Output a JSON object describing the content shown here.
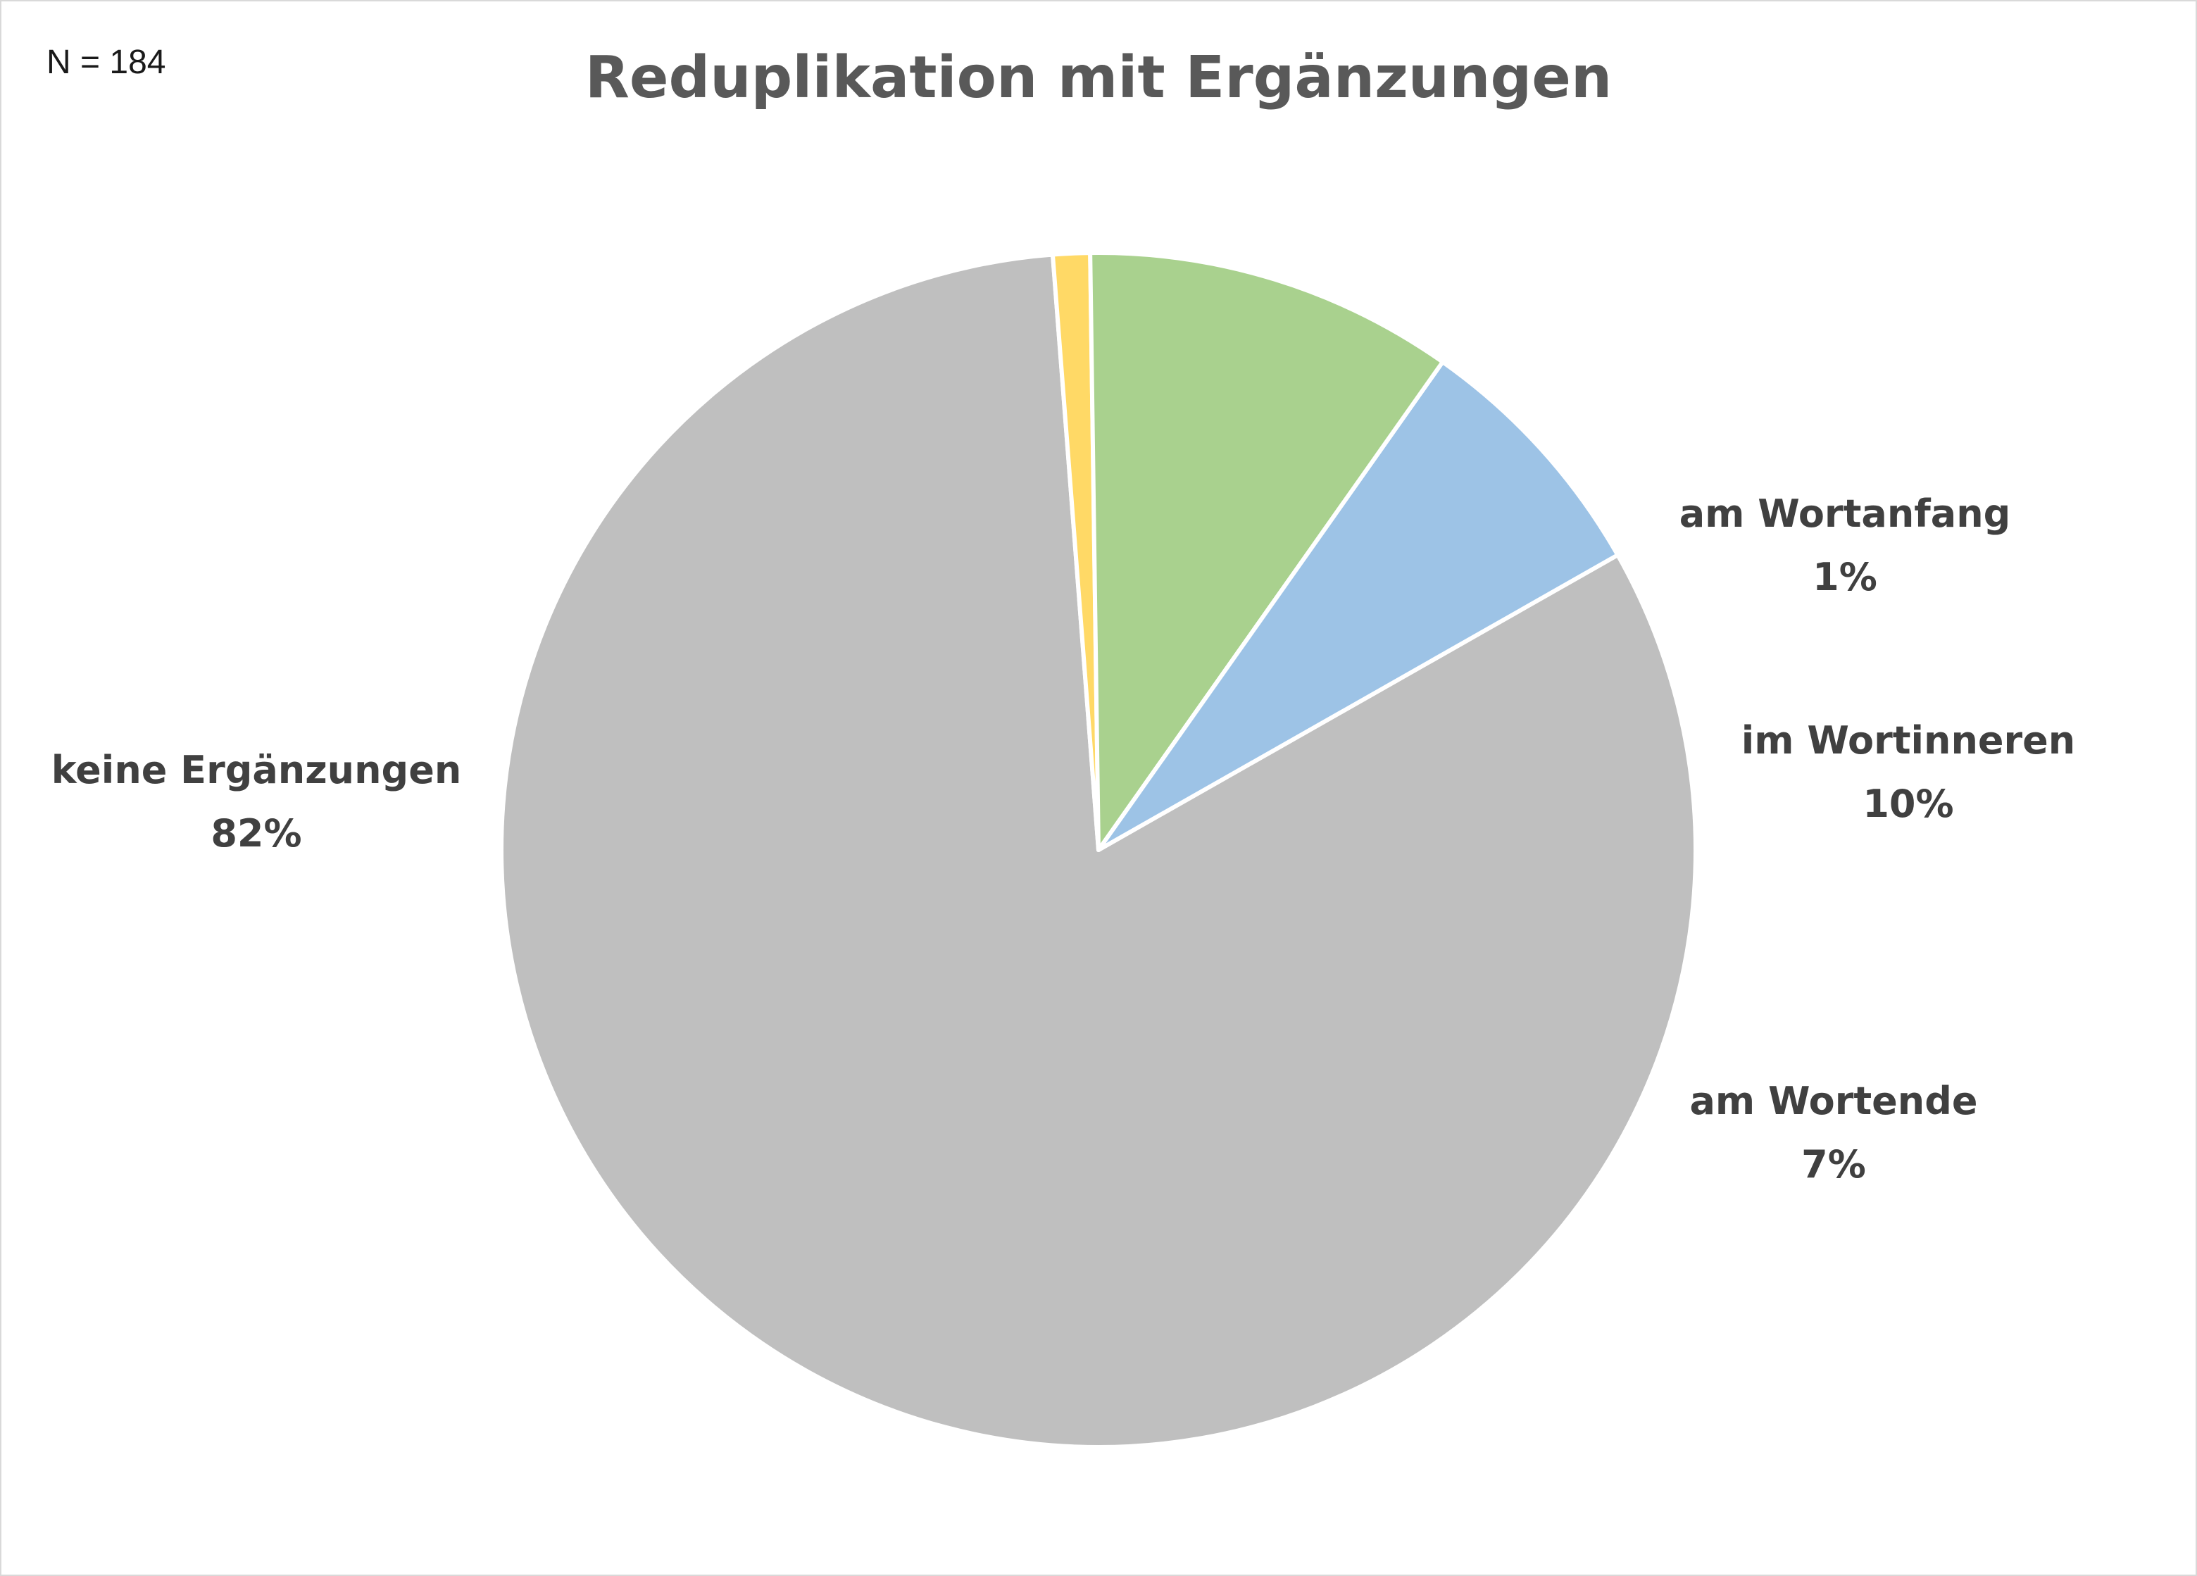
{
  "chart_data": {
    "type": "pie",
    "title": "Reduplikation mit Ergänzungen",
    "note": "N = 184",
    "slices": [
      {
        "label": "keine Ergänzungen",
        "value": 82,
        "value_label": "82%",
        "color": "#bfbfbf"
      },
      {
        "label": "am Wortanfang",
        "value": 1,
        "value_label": "1%",
        "color": "#ffd966"
      },
      {
        "label": "im Wortinneren",
        "value": 10,
        "value_label": "10%",
        "color": "#a9d18e"
      },
      {
        "label": "am Wortende",
        "value": 7,
        "value_label": "7%",
        "color": "#9dc3e6"
      }
    ],
    "legend": "none"
  }
}
